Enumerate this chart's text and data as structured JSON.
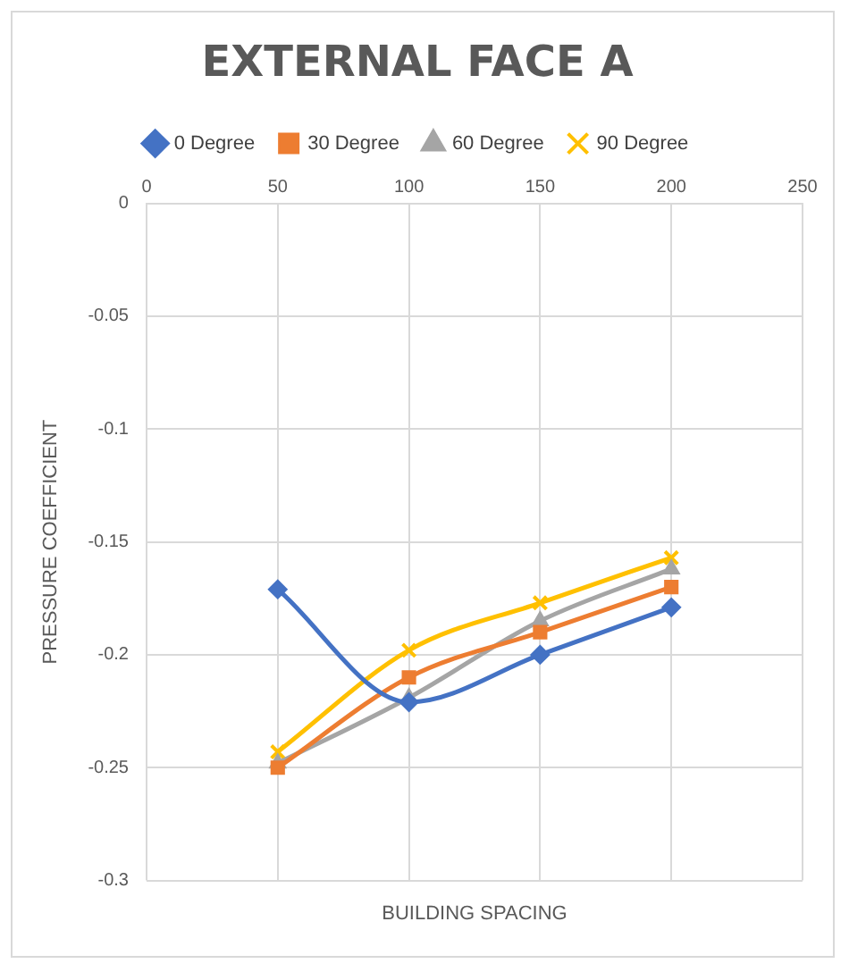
{
  "chart_data": {
    "type": "line",
    "title": "EXTERNAL FACE A",
    "xlabel": "BUILDING SPACING",
    "ylabel": "PRESSURE COEFFICIENT",
    "x": [
      50,
      100,
      150,
      200
    ],
    "series": [
      {
        "name": "0 Degree",
        "color": "#4472c4",
        "marker": "diamond",
        "values": [
          -0.171,
          -0.221,
          -0.2,
          -0.179
        ]
      },
      {
        "name": "30 Degree",
        "color": "#ed7d31",
        "marker": "square",
        "values": [
          -0.25,
          -0.21,
          -0.19,
          -0.17
        ]
      },
      {
        "name": "60 Degree",
        "color": "#a5a5a5",
        "marker": "triangle",
        "values": [
          -0.248,
          -0.219,
          -0.185,
          -0.162
        ]
      },
      {
        "name": "90 Degree",
        "color": "#ffc000",
        "marker": "cross",
        "values": [
          -0.243,
          -0.198,
          -0.177,
          -0.157
        ]
      }
    ],
    "xlim": [
      0,
      250
    ],
    "xticks": [
      0,
      50,
      100,
      150,
      200,
      250
    ],
    "ylim": [
      -0.3,
      0
    ],
    "yticks": [
      0,
      -0.05,
      -0.1,
      -0.15,
      -0.2,
      -0.25,
      -0.3
    ],
    "grid": true,
    "legend": "top"
  }
}
